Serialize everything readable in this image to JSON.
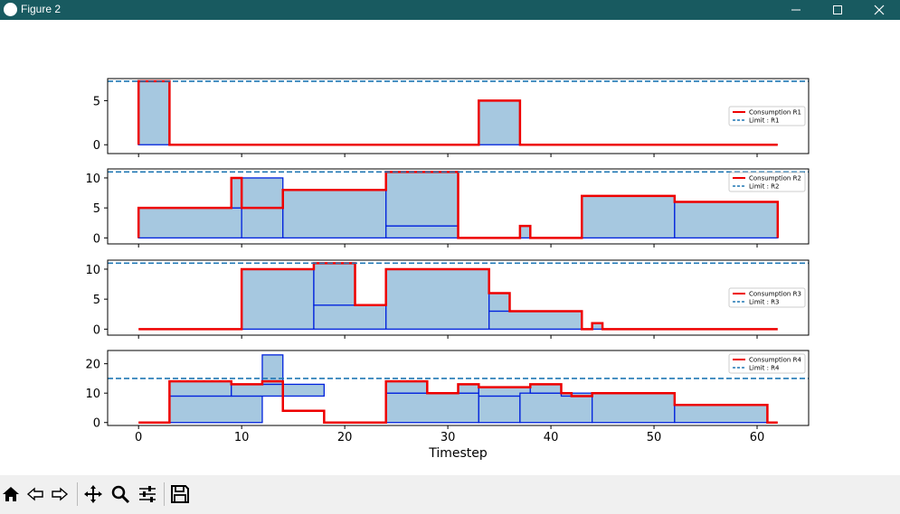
{
  "window": {
    "title": "Figure 2",
    "icons": [
      "minimize-icon",
      "maximize-icon",
      "close-icon"
    ]
  },
  "toolbar": {
    "icons": [
      "home-icon",
      "back-icon",
      "forward-icon",
      "pan-icon",
      "zoom-icon",
      "configure-subplots-icon",
      "save-icon"
    ]
  },
  "colors": {
    "consumption": "#ee0000",
    "limit": "#1f77b4",
    "fill": "#a6c8e0",
    "block_edge": "#0022dd"
  },
  "chart_data": {
    "type": "area",
    "xlabel": "Timestep",
    "xlim": [
      -3,
      65
    ],
    "xticks": [
      0,
      10,
      20,
      30,
      40,
      50,
      60
    ],
    "panels": [
      {
        "ylim": [
          -1,
          7.5
        ],
        "yticks": [
          0,
          5
        ],
        "limit": 7.2,
        "legend": [
          "Consumption R1",
          "Limit : R1"
        ],
        "legend_loc": "center-right",
        "consumption": [
          [
            0,
            0
          ],
          [
            0,
            7.2
          ],
          [
            3,
            7.2
          ],
          [
            3,
            0
          ],
          [
            33,
            0
          ],
          [
            33,
            5
          ],
          [
            37,
            5
          ],
          [
            37,
            0
          ],
          [
            62,
            0
          ]
        ],
        "blocks": [
          [
            0,
            3,
            0,
            7.2
          ],
          [
            33,
            37,
            0,
            5
          ]
        ]
      },
      {
        "ylim": [
          -1,
          11.5
        ],
        "yticks": [
          0,
          5,
          10
        ],
        "limit": 11,
        "legend": [
          "Consumption R2",
          "Limit : R2"
        ],
        "legend_loc": "upper-right",
        "consumption": [
          [
            0,
            0
          ],
          [
            0,
            5
          ],
          [
            9,
            5
          ],
          [
            9,
            10
          ],
          [
            10,
            10
          ],
          [
            10,
            5
          ],
          [
            14,
            5
          ],
          [
            14,
            8
          ],
          [
            24,
            8
          ],
          [
            24,
            11
          ],
          [
            31,
            11
          ],
          [
            31,
            0
          ],
          [
            37,
            0
          ],
          [
            37,
            2
          ],
          [
            38,
            2
          ],
          [
            38,
            0
          ],
          [
            43,
            0
          ],
          [
            43,
            7
          ],
          [
            52,
            7
          ],
          [
            52,
            6
          ],
          [
            62,
            6
          ],
          [
            62,
            0
          ]
        ],
        "blocks": [
          [
            0,
            10,
            0,
            5
          ],
          [
            9,
            10,
            5,
            10
          ],
          [
            10,
            14,
            0,
            10
          ],
          [
            14,
            24,
            0,
            8
          ],
          [
            24,
            31,
            0,
            2
          ],
          [
            24,
            31,
            2,
            11
          ],
          [
            37,
            38,
            0,
            2
          ],
          [
            43,
            52,
            0,
            7
          ],
          [
            52,
            62,
            0,
            6
          ]
        ]
      },
      {
        "ylim": [
          -1,
          11.5
        ],
        "yticks": [
          0,
          5,
          10
        ],
        "limit": 11,
        "legend": [
          "Consumption R3",
          "Limit : R3"
        ],
        "legend_loc": "center-right",
        "consumption": [
          [
            0,
            0
          ],
          [
            10,
            0
          ],
          [
            10,
            10
          ],
          [
            17,
            10
          ],
          [
            17,
            11
          ],
          [
            21,
            11
          ],
          [
            21,
            4
          ],
          [
            24,
            4
          ],
          [
            24,
            10
          ],
          [
            34,
            10
          ],
          [
            34,
            6
          ],
          [
            36,
            6
          ],
          [
            36,
            3
          ],
          [
            43,
            3
          ],
          [
            43,
            0
          ],
          [
            44,
            0
          ],
          [
            44,
            1
          ],
          [
            45,
            1
          ],
          [
            45,
            0
          ],
          [
            62,
            0
          ]
        ],
        "blocks": [
          [
            10,
            17,
            0,
            10
          ],
          [
            17,
            24,
            0,
            4
          ],
          [
            17,
            21,
            4,
            11
          ],
          [
            24,
            34,
            0,
            10
          ],
          [
            34,
            43,
            0,
            3
          ],
          [
            34,
            36,
            3,
            6
          ],
          [
            44,
            45,
            0,
            1
          ]
        ]
      },
      {
        "ylim": [
          -1,
          24.5
        ],
        "yticks": [
          0,
          10,
          20
        ],
        "limit": 15,
        "legend": [
          "Consumption R4",
          "Limit : R4"
        ],
        "legend_loc": "upper-right",
        "consumption": [
          [
            0,
            0
          ],
          [
            3,
            0
          ],
          [
            3,
            14
          ],
          [
            9,
            14
          ],
          [
            9,
            13
          ],
          [
            12,
            13
          ],
          [
            12,
            14
          ],
          [
            14,
            14
          ],
          [
            14,
            4
          ],
          [
            18,
            4
          ],
          [
            18,
            0
          ],
          [
            24,
            0
          ],
          [
            24,
            14
          ],
          [
            28,
            14
          ],
          [
            28,
            10
          ],
          [
            31,
            10
          ],
          [
            31,
            13
          ],
          [
            33,
            13
          ],
          [
            33,
            12
          ],
          [
            38,
            12
          ],
          [
            38,
            13
          ],
          [
            41,
            13
          ],
          [
            41,
            10
          ],
          [
            42,
            10
          ],
          [
            42,
            9
          ],
          [
            44,
            9
          ],
          [
            44,
            10
          ],
          [
            52,
            10
          ],
          [
            52,
            6
          ],
          [
            61,
            6
          ],
          [
            61,
            0
          ],
          [
            62,
            0
          ]
        ],
        "blocks": [
          [
            3,
            12,
            0,
            9
          ],
          [
            3,
            9,
            9,
            14
          ],
          [
            9,
            18,
            9,
            13
          ],
          [
            12,
            14,
            13,
            23
          ],
          [
            24,
            33,
            0,
            10
          ],
          [
            24,
            28,
            10,
            14
          ],
          [
            31,
            33,
            10,
            13
          ],
          [
            33,
            37,
            0,
            9
          ],
          [
            33,
            38,
            9,
            12
          ],
          [
            37,
            44,
            0,
            10
          ],
          [
            38,
            41,
            10,
            13
          ],
          [
            41,
            42,
            9,
            10
          ],
          [
            44,
            52,
            0,
            10
          ],
          [
            52,
            61,
            0,
            6
          ]
        ]
      }
    ]
  }
}
